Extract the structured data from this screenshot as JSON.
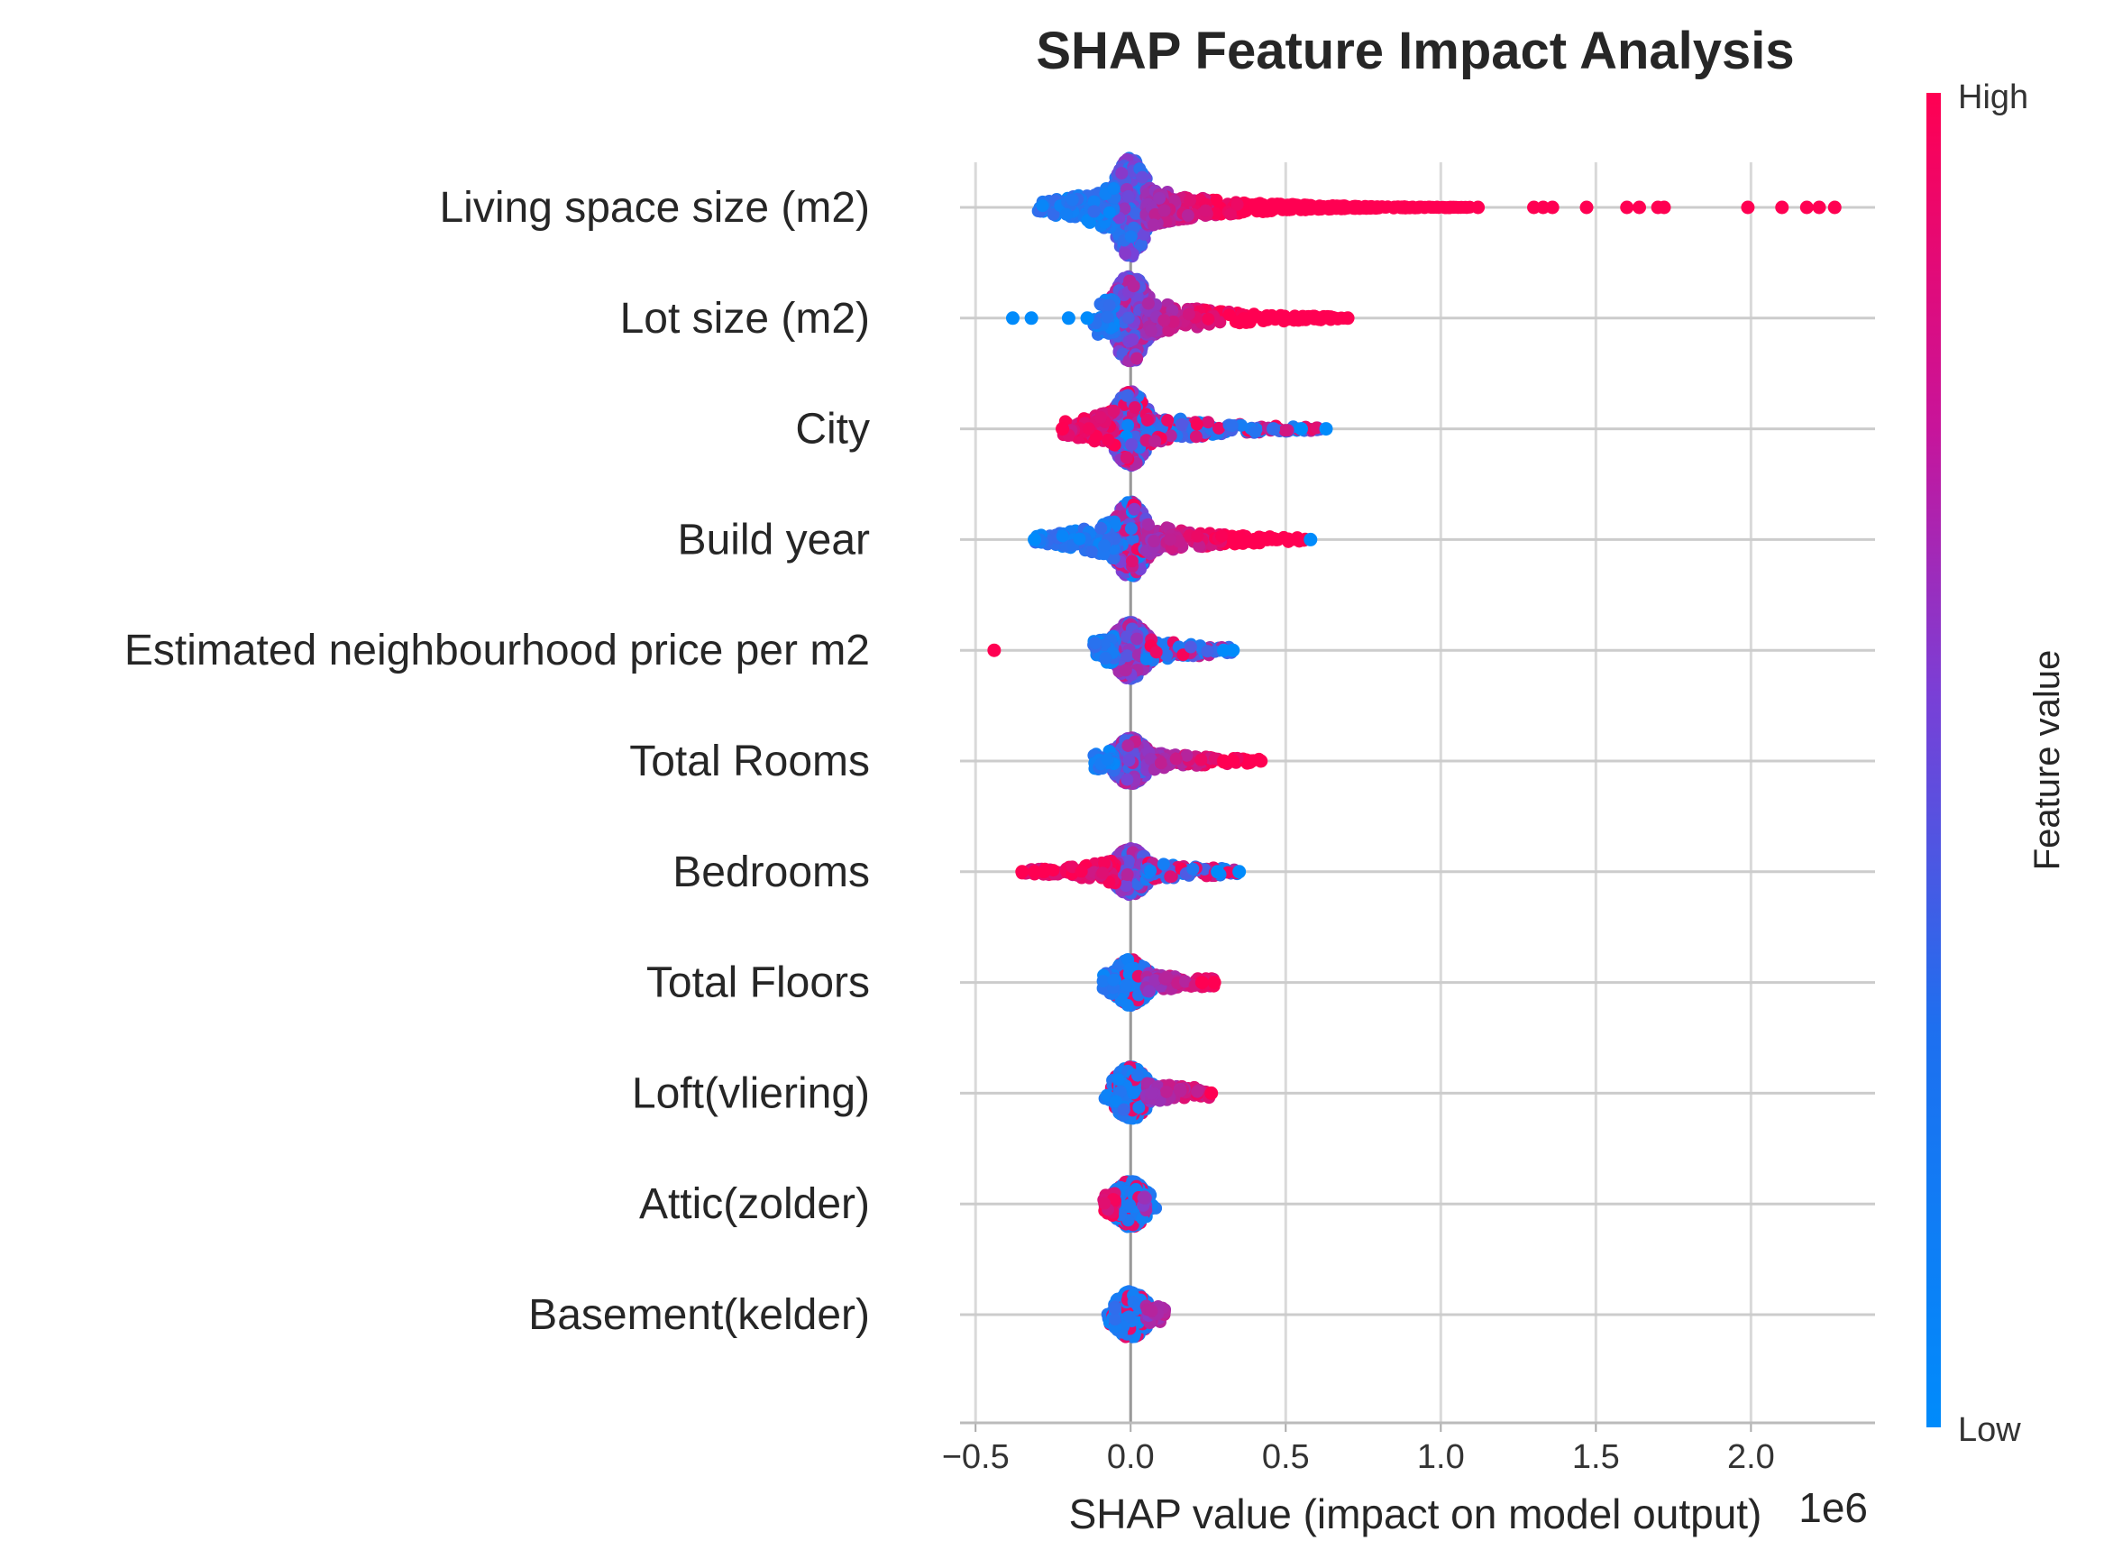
{
  "chart_data": {
    "type": "scatter",
    "subtype": "shap-beeswarm",
    "title": "SHAP Feature Impact Analysis",
    "xlabel": "SHAP value (impact on model output)",
    "x_offset_label": "1e6",
    "xlim": [
      -0.55,
      2.4
    ],
    "xticks": [
      -0.5,
      0.0,
      0.5,
      1.0,
      1.5,
      2.0
    ],
    "xtick_labels": [
      "−0.5",
      "0.0",
      "0.5",
      "1.0",
      "1.5",
      "2.0"
    ],
    "grid": true,
    "colorbar": {
      "title": "Feature value",
      "high_label": "High",
      "low_label": "Low",
      "high_color": "#ff0052",
      "low_color": "#008bfb"
    },
    "features": [
      {
        "name": "Living space size (m2)",
        "low_min": -0.3,
        "high_max": 2.27,
        "outliers": [
          {
            "x": 1.12,
            "c": 1
          },
          {
            "x": 1.3,
            "c": 1
          },
          {
            "x": 1.33,
            "c": 1
          },
          {
            "x": 1.36,
            "c": 1
          },
          {
            "x": 1.47,
            "c": 1
          },
          {
            "x": 1.6,
            "c": 1
          },
          {
            "x": 1.64,
            "c": 1
          },
          {
            "x": 1.7,
            "c": 1
          },
          {
            "x": 1.72,
            "c": 1
          },
          {
            "x": 1.99,
            "c": 1
          },
          {
            "x": 2.1,
            "c": 1
          },
          {
            "x": 2.18,
            "c": 1
          },
          {
            "x": 2.22,
            "c": 1
          },
          {
            "x": 2.27,
            "c": 1
          }
        ]
      },
      {
        "name": "Lot size (m2)",
        "low_min": -0.12,
        "high_max": 0.7,
        "outliers": [
          {
            "x": -0.38,
            "c": 0
          },
          {
            "x": -0.32,
            "c": 0
          },
          {
            "x": -0.2,
            "c": 0
          },
          {
            "x": -0.14,
            "c": 0
          },
          {
            "x": 0.6,
            "c": 1
          },
          {
            "x": 0.65,
            "c": 1
          },
          {
            "x": 0.7,
            "c": 1
          }
        ]
      },
      {
        "name": "City",
        "low_min": -0.22,
        "high_max": 0.63,
        "outliers": [
          {
            "x": 0.46,
            "c": 0.2
          },
          {
            "x": 0.55,
            "c": 0
          },
          {
            "x": 0.63,
            "c": 0
          },
          {
            "x": -0.22,
            "c": 1
          }
        ]
      },
      {
        "name": "Build year",
        "low_min": -0.31,
        "high_max": 0.58,
        "outliers": [
          {
            "x": 0.4,
            "c": 1
          },
          {
            "x": 0.44,
            "c": 1
          },
          {
            "x": 0.47,
            "c": 1
          },
          {
            "x": 0.58,
            "c": 0
          },
          {
            "x": -0.31,
            "c": 0
          }
        ]
      },
      {
        "name": "Estimated neighbourhood price per m2",
        "low_min": -0.12,
        "high_max": 0.33,
        "outliers": [
          {
            "x": -0.44,
            "c": 1
          },
          {
            "x": 0.3,
            "c": 0
          },
          {
            "x": 0.33,
            "c": 0
          }
        ]
      },
      {
        "name": "Total Rooms",
        "low_min": -0.12,
        "high_max": 0.42,
        "outliers": [
          {
            "x": 0.3,
            "c": 1
          },
          {
            "x": 0.33,
            "c": 1
          },
          {
            "x": 0.39,
            "c": 1
          },
          {
            "x": 0.42,
            "c": 1
          }
        ]
      },
      {
        "name": "Bedrooms",
        "low_min": -0.35,
        "high_max": 0.35,
        "outliers": [
          {
            "x": -0.35,
            "c": 1
          },
          {
            "x": -0.31,
            "c": 1
          },
          {
            "x": -0.28,
            "c": 1
          },
          {
            "x": 0.28,
            "c": 0
          },
          {
            "x": 0.35,
            "c": 0
          }
        ]
      },
      {
        "name": "Total Floors",
        "low_min": -0.09,
        "high_max": 0.27,
        "outliers": [
          {
            "x": 0.23,
            "c": 1
          },
          {
            "x": 0.27,
            "c": 1
          }
        ]
      },
      {
        "name": "Loft(vliering)",
        "low_min": -0.02,
        "high_max": 0.26,
        "outliers": [
          {
            "x": 0.26,
            "c": 1
          }
        ]
      },
      {
        "name": "Attic(zolder)",
        "low_min": -0.09,
        "high_max": 0.04,
        "outliers": []
      },
      {
        "name": "Basement(kelder)",
        "low_min": -0.05,
        "high_max": 0.11,
        "outliers": []
      }
    ]
  }
}
